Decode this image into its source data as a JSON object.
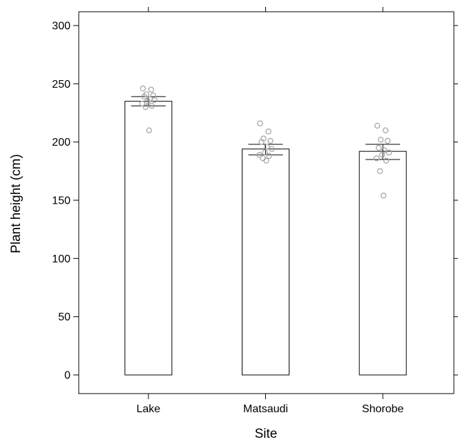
{
  "chart_data": {
    "type": "bar",
    "title": "",
    "xlabel": "Site",
    "ylabel": "Plant height (cm)",
    "ylim": [
      -15,
      310
    ],
    "yticks": [
      0,
      50,
      100,
      150,
      200,
      250,
      300
    ],
    "ytick_labels": [
      "0",
      "50",
      "100",
      "150",
      "200",
      "250",
      "300"
    ],
    "categories": [
      "Lake",
      "Matsaudi",
      "Shorobe"
    ],
    "values": [
      235,
      194,
      192
    ],
    "error_bars": [
      {
        "lower": 231,
        "upper": 239
      },
      {
        "lower": 189,
        "upper": 198
      },
      {
        "lower": 185,
        "upper": 198
      }
    ],
    "points": [
      [
        246,
        245,
        241,
        240,
        239,
        237,
        236,
        235,
        233,
        231,
        230,
        210
      ],
      [
        216,
        209,
        203,
        201,
        200,
        196,
        194,
        191,
        189,
        188,
        186,
        184
      ],
      [
        214,
        210,
        202,
        201,
        195,
        193,
        191,
        189,
        186,
        184,
        175,
        154
      ]
    ],
    "grid": false,
    "legend": "none",
    "colors": {
      "bar_fill": "#ffffff",
      "bar_stroke": "#000000",
      "point_stroke": "#a0a0a0"
    }
  }
}
